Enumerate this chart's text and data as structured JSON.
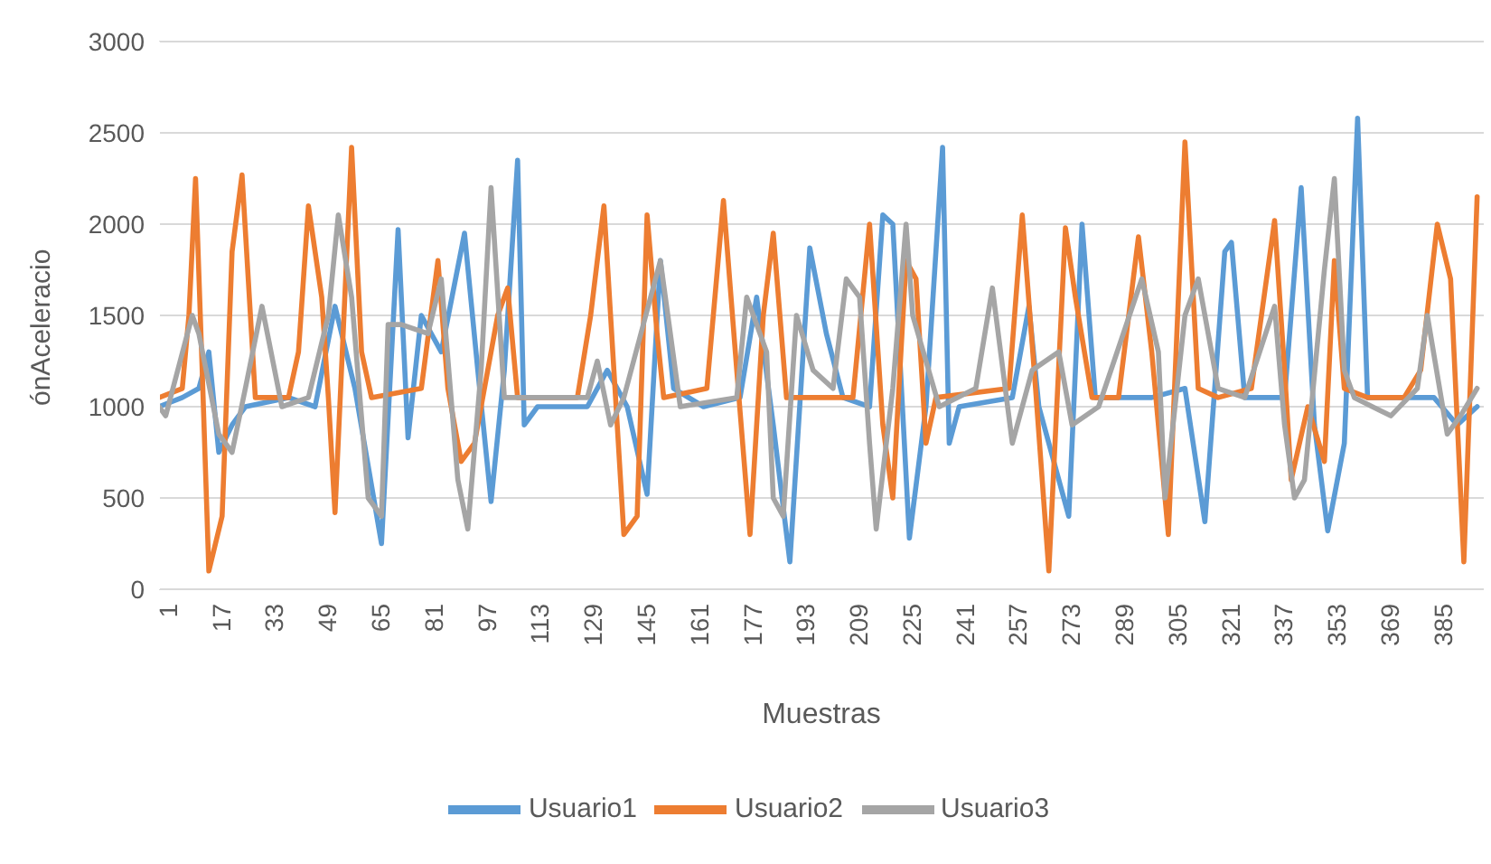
{
  "chart_data": {
    "type": "line",
    "xlabel": "Muestras",
    "ylabel": "ónAceleracio",
    "xlim": [
      1,
      400
    ],
    "xticks": [
      1,
      17,
      33,
      49,
      65,
      81,
      97,
      113,
      129,
      145,
      161,
      177,
      193,
      209,
      225,
      241,
      257,
      273,
      289,
      305,
      321,
      337,
      353,
      369,
      385
    ],
    "ylim": [
      0,
      3000
    ],
    "yticks": [
      0,
      500,
      1000,
      1500,
      2000,
      2500,
      3000
    ],
    "grid": "y",
    "legend": "bottom",
    "marker": "none",
    "line_style": "solid",
    "series": [
      {
        "name": "Usuario1",
        "color": "#5b9bd5",
        "x": [
          1,
          8,
          13,
          16,
          19,
          23,
          27,
          40,
          48,
          54,
          60,
          68,
          73,
          76,
          80,
          86,
          93,
          97,
          101,
          105,
          109,
          111,
          115,
          130,
          136,
          142,
          148,
          152,
          156,
          165,
          176,
          181,
          186,
          191,
          197,
          202,
          207,
          215,
          219,
          222,
          227,
          232,
          237,
          239,
          242,
          258,
          263,
          266,
          275,
          279,
          283,
          300,
          310,
          316,
          322,
          324,
          328,
          340,
          345,
          349,
          353,
          358,
          362,
          365,
          385,
          392,
          398
        ],
        "values": [
          1000,
          1050,
          1100,
          1300,
          750,
          900,
          1000,
          1050,
          1000,
          1550,
          1100,
          250,
          1970,
          830,
          1500,
          1300,
          1950,
          1200,
          480,
          1200,
          2350,
          900,
          1000,
          1000,
          1200,
          1000,
          520,
          1800,
          1100,
          1000,
          1050,
          1600,
          900,
          150,
          1870,
          1400,
          1050,
          1000,
          2050,
          2000,
          280,
          1000,
          2420,
          800,
          1000,
          1050,
          1550,
          1000,
          400,
          2000,
          1050,
          1050,
          1100,
          370,
          1850,
          1900,
          1050,
          1050,
          2200,
          900,
          320,
          800,
          2580,
          1050,
          1050,
          900,
          1000
        ]
      },
      {
        "name": "Usuario2",
        "color": "#ed7d31",
        "x": [
          1,
          8,
          10,
          12,
          14,
          16,
          20,
          23,
          26,
          30,
          40,
          43,
          46,
          50,
          52,
          54,
          59,
          62,
          65,
          80,
          85,
          88,
          92,
          96,
          103,
          106,
          109,
          127,
          131,
          135,
          138,
          141,
          145,
          148,
          151,
          153,
          166,
          171,
          175,
          179,
          183,
          186,
          190,
          210,
          215,
          219,
          222,
          226,
          229,
          232,
          235,
          257,
          261,
          265,
          269,
          274,
          277,
          282,
          290,
          296,
          300,
          305,
          310,
          314,
          320,
          330,
          337,
          340,
          342,
          347,
          352,
          355,
          358,
          365,
          376,
          381,
          386,
          390,
          394,
          398
        ],
        "values": [
          1050,
          1100,
          1500,
          2250,
          1200,
          100,
          400,
          1850,
          2270,
          1050,
          1050,
          1300,
          2100,
          1600,
          1050,
          420,
          2420,
          1300,
          1050,
          1100,
          1800,
          1100,
          700,
          800,
          1500,
          1650,
          1050,
          1050,
          1500,
          2100,
          1200,
          300,
          400,
          2050,
          1400,
          1050,
          1100,
          2130,
          1200,
          300,
          1500,
          1950,
          1050,
          1050,
          2000,
          900,
          500,
          1800,
          1700,
          800,
          1050,
          1100,
          2050,
          1100,
          100,
          1980,
          1600,
          1050,
          1050,
          1930,
          1300,
          300,
          2450,
          1100,
          1050,
          1100,
          2020,
          1200,
          600,
          1000,
          700,
          1800,
          1100,
          1050,
          1050,
          1200,
          2000,
          1700,
          150,
          2150
        ]
      },
      {
        "name": "Usuario3",
        "color": "#a5a5a5",
        "x": [
          1,
          3,
          11,
          13,
          19,
          23,
          27,
          32,
          38,
          46,
          52,
          55,
          59,
          64,
          68,
          70,
          74,
          82,
          86,
          91,
          94,
          98,
          101,
          105,
          130,
          133,
          137,
          141,
          152,
          158,
          175,
          178,
          184,
          186,
          189,
          193,
          198,
          204,
          208,
          212,
          215,
          217,
          222,
          226,
          228,
          236,
          247,
          252,
          258,
          264,
          272,
          276,
          284,
          297,
          302,
          304,
          310,
          314,
          320,
          328,
          337,
          340,
          343,
          346,
          352,
          355,
          358,
          361,
          372,
          380,
          383,
          389,
          393,
          398
        ],
        "values": [
          1000,
          950,
          1500,
          1400,
          850,
          750,
          1100,
          1550,
          1000,
          1050,
          1500,
          2050,
          1600,
          500,
          400,
          1450,
          1450,
          1400,
          1700,
          600,
          330,
          1200,
          2200,
          1050,
          1050,
          1250,
          900,
          1050,
          1800,
          1000,
          1050,
          1600,
          1300,
          500,
          400,
          1500,
          1200,
          1100,
          1700,
          1600,
          800,
          330,
          1100,
          2000,
          1500,
          1000,
          1100,
          1650,
          800,
          1200,
          1300,
          900,
          1000,
          1700,
          1300,
          500,
          1500,
          1700,
          1100,
          1050,
          1550,
          900,
          500,
          600,
          1750,
          2250,
          1200,
          1050,
          950,
          1100,
          1500,
          850,
          950,
          1100
        ]
      }
    ]
  }
}
